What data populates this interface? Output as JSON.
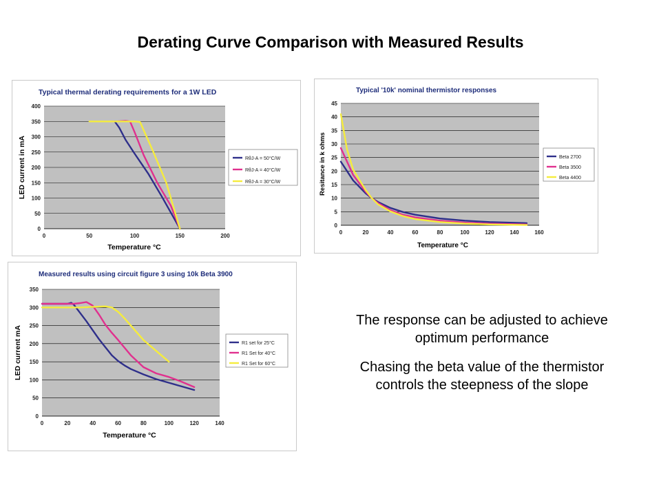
{
  "slide": {
    "title": "Derating Curve Comparison with Measured Results",
    "paragraphs": [
      "The response can be adjusted to achieve optimum performance",
      "Chasing the beta value of the thermistor controls the steepness of the slope"
    ]
  },
  "chart_data": [
    {
      "id": "chart1",
      "type": "line",
      "title": "Typical thermal derating requirements for a 1W LED",
      "xlabel": "Temperature °C",
      "ylabel": "LED current in mA",
      "xlim": [
        0,
        200
      ],
      "ylim": [
        0,
        400
      ],
      "xticks": [
        0,
        50,
        100,
        150,
        200
      ],
      "yticks": [
        0,
        50,
        100,
        150,
        200,
        250,
        300,
        350,
        400
      ],
      "legend_position": "right",
      "series": [
        {
          "name": "RθJ-A = 50°C/W",
          "color": "#2e2f8a",
          "x": [
            78,
            83,
            90,
            100,
            115,
            130,
            150
          ],
          "y": [
            350,
            330,
            290,
            245,
            180,
            105,
            0
          ]
        },
        {
          "name": "RθJ-A = 40°C/W",
          "color": "#e0308e",
          "x": [
            75,
            80,
            90,
            95,
            100,
            110,
            125,
            140,
            150
          ],
          "y": [
            350,
            350,
            352,
            350,
            315,
            240,
            150,
            75,
            0
          ]
        },
        {
          "name": "RθJ-A = 30°C/W",
          "color": "#f5ec3c",
          "x": [
            50,
            75,
            100,
            106,
            120,
            135,
            150
          ],
          "y": [
            350,
            350,
            350,
            348,
            255,
            150,
            0
          ]
        }
      ]
    },
    {
      "id": "chart2",
      "type": "line",
      "title": "Typical '10k' nominal thermistor responses",
      "xlabel": "Temperature °C",
      "ylabel": "Resitance in k ohms",
      "xlim": [
        0,
        160
      ],
      "ylim": [
        0,
        45
      ],
      "xticks": [
        0,
        20,
        40,
        60,
        80,
        100,
        120,
        140,
        160
      ],
      "yticks": [
        0,
        5,
        10,
        15,
        20,
        25,
        30,
        35,
        40,
        45
      ],
      "legend_position": "right",
      "series": [
        {
          "name": "Beta 2700",
          "color": "#2e2f8a",
          "x": [
            0,
            10,
            20,
            25,
            30,
            40,
            50,
            60,
            80,
            100,
            120,
            150
          ],
          "y": [
            23.5,
            16.5,
            11.8,
            10,
            8.6,
            6.4,
            4.9,
            3.9,
            2.5,
            1.7,
            1.2,
            0.8
          ]
        },
        {
          "name": "Beta 3500",
          "color": "#e0308e",
          "x": [
            0,
            10,
            20,
            25,
            30,
            40,
            50,
            60,
            80,
            100,
            120,
            150
          ],
          "y": [
            28.5,
            18.5,
            12.4,
            10,
            8.2,
            5.6,
            3.9,
            2.9,
            1.7,
            1.0,
            0.6,
            0.3
          ]
        },
        {
          "name": "Beta 4400",
          "color": "#f5ec3c",
          "x": [
            0,
            5,
            10,
            20,
            25,
            30,
            40,
            50,
            60,
            80,
            100,
            120,
            150
          ],
          "y": [
            41,
            28,
            20.5,
            13,
            10,
            7.7,
            5.1,
            3.4,
            2.3,
            1.2,
            0.6,
            0.3,
            0.1
          ]
        }
      ]
    },
    {
      "id": "chart3",
      "type": "line",
      "title": "Measured results using circuit figure 3 using 10k Beta 3900",
      "xlabel": "Temperature °C",
      "ylabel": "LED current mA",
      "xlim": [
        0,
        140
      ],
      "ylim": [
        0,
        350
      ],
      "xticks": [
        0,
        20,
        40,
        60,
        80,
        100,
        120,
        140
      ],
      "yticks": [
        0,
        50,
        100,
        150,
        200,
        250,
        300,
        350
      ],
      "legend_position": "right",
      "series": [
        {
          "name": "R1 set for 25°C",
          "color": "#2e2f8a",
          "x": [
            0,
            20,
            23,
            25,
            30,
            35,
            40,
            45,
            50,
            55,
            60,
            65,
            70,
            80,
            90,
            100,
            110,
            120
          ],
          "y": [
            310,
            310,
            313,
            308,
            285,
            262,
            237,
            212,
            190,
            168,
            152,
            140,
            130,
            115,
            102,
            92,
            82,
            72
          ]
        },
        {
          "name": "R1 Set for 40°C",
          "color": "#e0308e",
          "x": [
            0,
            25,
            30,
            35,
            40,
            45,
            50,
            55,
            60,
            70,
            80,
            90,
            100,
            110,
            120
          ],
          "y": [
            310,
            310,
            312,
            315,
            305,
            280,
            252,
            230,
            210,
            168,
            135,
            118,
            108,
            95,
            80
          ]
        },
        {
          "name": "R1 Set for 60°C",
          "color": "#f5ec3c",
          "x": [
            0,
            30,
            50,
            55,
            60,
            65,
            70,
            80,
            90,
            100
          ],
          "y": [
            300,
            300,
            303,
            300,
            288,
            270,
            250,
            210,
            180,
            150
          ]
        }
      ]
    }
  ]
}
